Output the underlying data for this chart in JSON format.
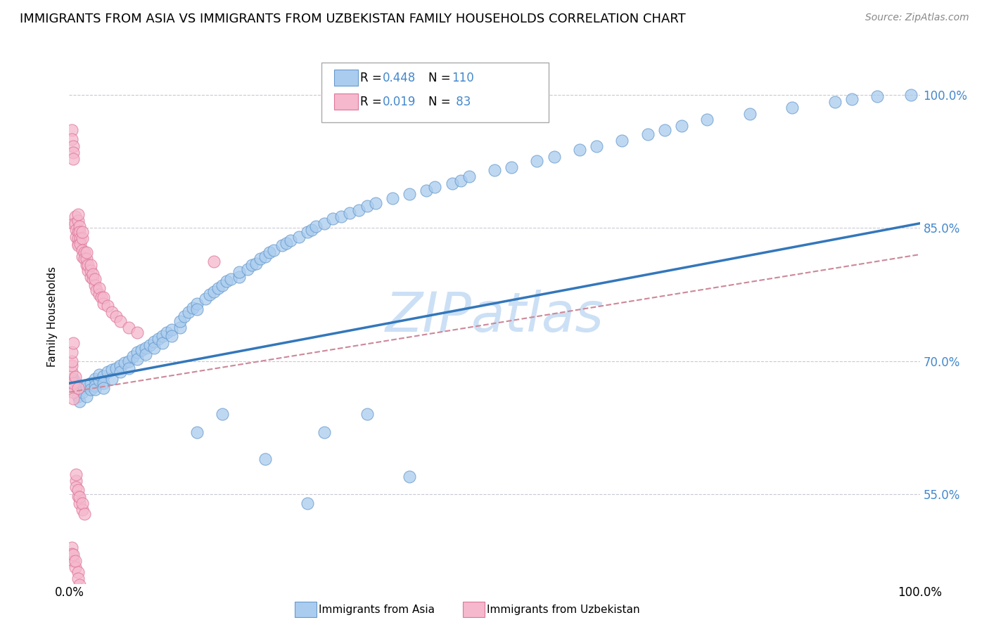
{
  "title": "IMMIGRANTS FROM ASIA VS IMMIGRANTS FROM UZBEKISTAN FAMILY HOUSEHOLDS CORRELATION CHART",
  "source": "Source: ZipAtlas.com",
  "ylabel": "Family Households",
  "color_asia": "#aaccee",
  "color_asia_edge": "#6699cc",
  "color_uzb": "#f5b8cc",
  "color_uzb_edge": "#dd7799",
  "color_line_asia": "#3377bb",
  "color_line_uzb": "#cc8899",
  "watermark": "ZIPatlas",
  "watermark_color": "#cce0f5",
  "title_fontsize": 13,
  "source_fontsize": 10,
  "right_label_color": "#4488cc",
  "xlim": [
    0.0,
    1.0
  ],
  "ylim": [
    0.45,
    1.05
  ],
  "yticks": [
    0.55,
    0.7,
    0.85,
    1.0
  ],
  "ytick_labels": [
    "55.0%",
    "70.0%",
    "85.0%",
    "100.0%"
  ],
  "asia_scatter_x": [
    0.005,
    0.01,
    0.01,
    0.012,
    0.015,
    0.015,
    0.02,
    0.02,
    0.025,
    0.025,
    0.03,
    0.03,
    0.03,
    0.035,
    0.035,
    0.04,
    0.04,
    0.04,
    0.045,
    0.05,
    0.05,
    0.055,
    0.06,
    0.06,
    0.065,
    0.07,
    0.07,
    0.075,
    0.08,
    0.08,
    0.085,
    0.09,
    0.09,
    0.095,
    0.1,
    0.1,
    0.105,
    0.11,
    0.11,
    0.115,
    0.12,
    0.12,
    0.13,
    0.13,
    0.135,
    0.14,
    0.145,
    0.15,
    0.15,
    0.16,
    0.165,
    0.17,
    0.175,
    0.18,
    0.185,
    0.19,
    0.2,
    0.2,
    0.21,
    0.215,
    0.22,
    0.225,
    0.23,
    0.235,
    0.24,
    0.25,
    0.255,
    0.26,
    0.27,
    0.28,
    0.285,
    0.29,
    0.3,
    0.31,
    0.32,
    0.33,
    0.34,
    0.35,
    0.36,
    0.38,
    0.4,
    0.42,
    0.43,
    0.45,
    0.46,
    0.47,
    0.5,
    0.52,
    0.55,
    0.57,
    0.6,
    0.62,
    0.65,
    0.68,
    0.7,
    0.72,
    0.75,
    0.8,
    0.85,
    0.9,
    0.92,
    0.95,
    0.99,
    0.3,
    0.35,
    0.4,
    0.23,
    0.28,
    0.18,
    0.15
  ],
  "asia_scatter_y": [
    0.68,
    0.67,
    0.66,
    0.655,
    0.67,
    0.665,
    0.672,
    0.66,
    0.675,
    0.668,
    0.68,
    0.672,
    0.668,
    0.678,
    0.685,
    0.683,
    0.675,
    0.67,
    0.688,
    0.69,
    0.68,
    0.692,
    0.695,
    0.688,
    0.698,
    0.7,
    0.692,
    0.705,
    0.71,
    0.702,
    0.712,
    0.715,
    0.708,
    0.718,
    0.722,
    0.715,
    0.725,
    0.728,
    0.72,
    0.732,
    0.735,
    0.728,
    0.738,
    0.745,
    0.75,
    0.755,
    0.76,
    0.765,
    0.758,
    0.77,
    0.775,
    0.778,
    0.782,
    0.785,
    0.79,
    0.792,
    0.795,
    0.8,
    0.803,
    0.808,
    0.81,
    0.815,
    0.818,
    0.822,
    0.825,
    0.83,
    0.833,
    0.836,
    0.84,
    0.845,
    0.848,
    0.852,
    0.855,
    0.86,
    0.863,
    0.867,
    0.87,
    0.875,
    0.878,
    0.883,
    0.888,
    0.892,
    0.896,
    0.9,
    0.903,
    0.908,
    0.915,
    0.918,
    0.925,
    0.93,
    0.938,
    0.942,
    0.948,
    0.955,
    0.96,
    0.965,
    0.972,
    0.978,
    0.985,
    0.992,
    0.995,
    0.998,
    1.0,
    0.62,
    0.64,
    0.57,
    0.59,
    0.54,
    0.64,
    0.62
  ],
  "uzb_scatter_x": [
    0.003,
    0.003,
    0.005,
    0.005,
    0.005,
    0.005,
    0.007,
    0.007,
    0.008,
    0.008,
    0.01,
    0.01,
    0.01,
    0.01,
    0.01,
    0.01,
    0.012,
    0.012,
    0.013,
    0.013,
    0.015,
    0.015,
    0.015,
    0.015,
    0.018,
    0.018,
    0.02,
    0.02,
    0.02,
    0.022,
    0.022,
    0.025,
    0.025,
    0.025,
    0.028,
    0.028,
    0.03,
    0.03,
    0.032,
    0.035,
    0.035,
    0.038,
    0.04,
    0.04,
    0.045,
    0.05,
    0.055,
    0.06,
    0.07,
    0.08,
    0.008,
    0.008,
    0.008,
    0.01,
    0.01,
    0.012,
    0.012,
    0.015,
    0.015,
    0.018,
    0.003,
    0.003,
    0.005,
    0.005,
    0.007,
    0.007,
    0.01,
    0.01,
    0.012,
    0.015,
    0.003,
    0.003,
    0.005,
    0.005,
    0.003,
    0.003,
    0.005,
    0.007,
    0.01,
    0.003,
    0.003,
    0.17,
    0.005
  ],
  "uzb_scatter_y": [
    0.96,
    0.95,
    0.942,
    0.935,
    0.928,
    0.855,
    0.863,
    0.855,
    0.848,
    0.84,
    0.832,
    0.845,
    0.838,
    0.83,
    0.858,
    0.865,
    0.852,
    0.845,
    0.838,
    0.832,
    0.825,
    0.818,
    0.838,
    0.845,
    0.822,
    0.815,
    0.808,
    0.815,
    0.822,
    0.802,
    0.808,
    0.795,
    0.802,
    0.808,
    0.792,
    0.798,
    0.785,
    0.792,
    0.78,
    0.775,
    0.782,
    0.772,
    0.765,
    0.772,
    0.762,
    0.755,
    0.75,
    0.745,
    0.738,
    0.732,
    0.565,
    0.558,
    0.572,
    0.548,
    0.555,
    0.54,
    0.547,
    0.533,
    0.54,
    0.528,
    0.49,
    0.483,
    0.475,
    0.482,
    0.468,
    0.475,
    0.462,
    0.455,
    0.448,
    0.442,
    0.68,
    0.672,
    0.665,
    0.658,
    0.688,
    0.695,
    0.675,
    0.682,
    0.67,
    0.7,
    0.71,
    0.812,
    0.72
  ]
}
